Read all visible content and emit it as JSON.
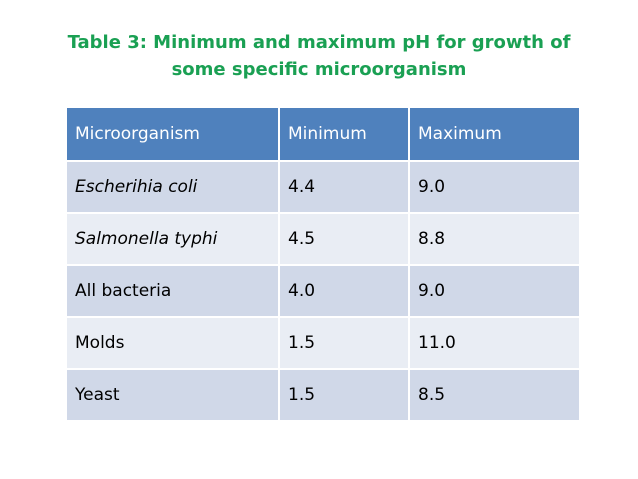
{
  "title": {
    "line1": "Table 3: Minimum and maximum pH for growth of",
    "line2": "some specific microorganism"
  },
  "table": {
    "headers": [
      "Microorganism",
      "Minimum",
      "Maximum"
    ],
    "rows": [
      {
        "organism": "Escherihia coli",
        "min": "4.4",
        "max": "9.0"
      },
      {
        "organism": "Salmonella typhi",
        "min": "4.5",
        "max": "8.8"
      },
      {
        "organism": "All bacteria",
        "min": "4.0",
        "max": "9.0"
      },
      {
        "organism": "Molds",
        "min": "1.5",
        "max": "11.0"
      },
      {
        "organism": "Yeast",
        "min": "1.5",
        "max": "8.5"
      }
    ]
  },
  "colors": {
    "title": "#1aa053",
    "header_bg": "#4f81bd",
    "row_dark": "#d0d8e8",
    "row_light": "#e9edf4"
  }
}
